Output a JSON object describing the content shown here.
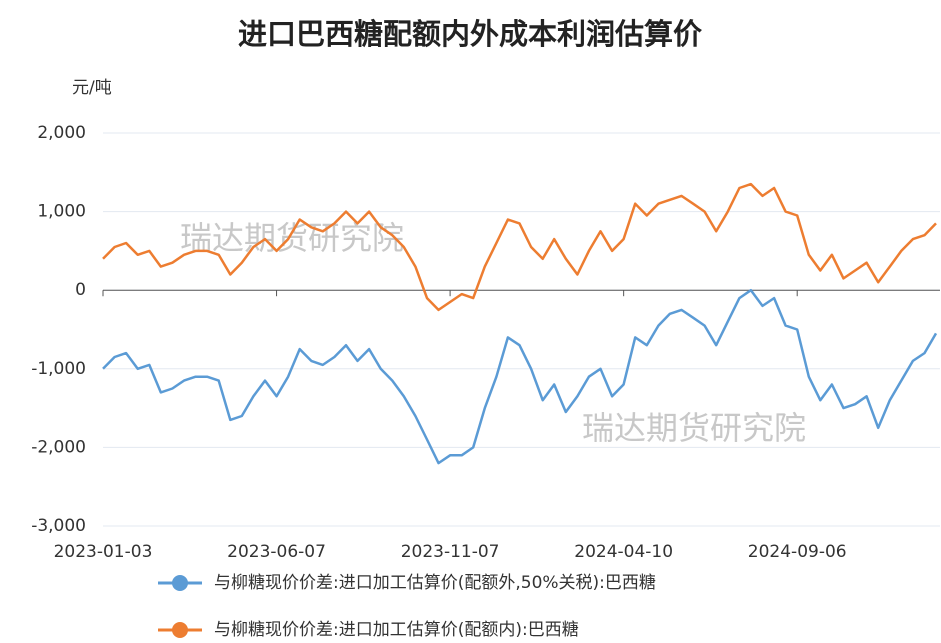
{
  "chart_data": {
    "type": "line",
    "title": "进口巴西糖配额内外成本利润估算价",
    "y_unit": "元/吨",
    "watermark": "瑞达期货研究院",
    "categories": [
      "2023-01-03",
      null,
      null,
      null,
      null,
      null,
      null,
      null,
      null,
      null,
      null,
      null,
      null,
      null,
      null,
      "2023-06-07",
      null,
      null,
      null,
      null,
      null,
      null,
      null,
      null,
      null,
      null,
      null,
      null,
      null,
      null,
      "2023-11-07",
      null,
      null,
      null,
      null,
      null,
      null,
      null,
      null,
      null,
      null,
      null,
      null,
      null,
      null,
      "2024-04-10",
      null,
      null,
      null,
      null,
      null,
      null,
      null,
      null,
      null,
      null,
      null,
      null,
      null,
      null,
      "2024-09-06",
      null,
      null,
      null,
      null,
      null,
      null,
      null,
      null,
      null,
      null,
      null,
      null
    ],
    "series": [
      {
        "name": "与柳糖现价价差:进口加工估算价(配额外,50%关税):巴西糖",
        "color": "#5b9bd5",
        "values": [
          -1000,
          -850,
          -800,
          -1000,
          -950,
          -1300,
          -1250,
          -1150,
          -1100,
          -1100,
          -1150,
          -1650,
          -1600,
          -1350,
          -1150,
          -1350,
          -1100,
          -750,
          -900,
          -950,
          -850,
          -700,
          -900,
          -750,
          -1000,
          -1150,
          -1350,
          -1600,
          -1900,
          -2200,
          -2100,
          -2100,
          -2000,
          -1500,
          -1100,
          -600,
          -700,
          -1000,
          -1400,
          -1200,
          -1550,
          -1350,
          -1100,
          -1000,
          -1350,
          -1200,
          -600,
          -700,
          -450,
          -300,
          -250,
          -350,
          -450,
          -700,
          -400,
          -100,
          0,
          -200,
          -100,
          -450,
          -500,
          -1100,
          -1400,
          -1200,
          -1500,
          -1450,
          -1350,
          -1750,
          -1400,
          -1150,
          -900,
          -800,
          -550
        ]
      },
      {
        "name": "与柳糖现价价差:进口加工估算价(配额内):巴西糖",
        "color": "#ed7d31",
        "values": [
          400,
          550,
          600,
          450,
          500,
          300,
          350,
          450,
          500,
          500,
          450,
          200,
          350,
          550,
          650,
          500,
          650,
          900,
          800,
          750,
          850,
          1000,
          850,
          1000,
          800,
          700,
          550,
          300,
          -100,
          -250,
          -150,
          -50,
          -100,
          300,
          600,
          900,
          850,
          550,
          400,
          650,
          400,
          200,
          500,
          750,
          500,
          650,
          1100,
          950,
          1100,
          1150,
          1200,
          1100,
          1000,
          750,
          1000,
          1300,
          1350,
          1200,
          1300,
          1000,
          950,
          450,
          250,
          450,
          150,
          250,
          350,
          100,
          300,
          500,
          650,
          700,
          850
        ]
      }
    ],
    "ylim": [
      -3000,
      2000
    ],
    "yticks": [
      {
        "value": 2000,
        "label": "2,000"
      },
      {
        "value": 1000,
        "label": "1,000"
      },
      0,
      {
        "value": -1000,
        "label": "-1,000"
      },
      {
        "value": -2000,
        "label": "-2,000"
      },
      {
        "value": -3000,
        "label": "-3,000"
      }
    ],
    "grid": true
  }
}
